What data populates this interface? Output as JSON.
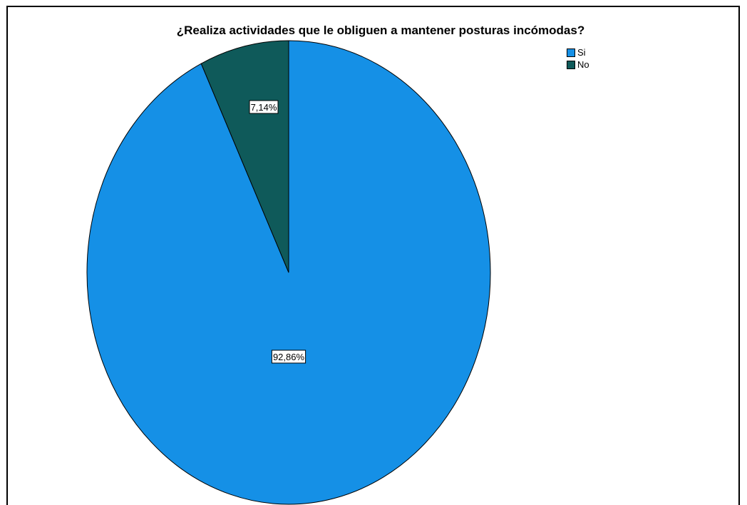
{
  "chart_data": {
    "type": "pie",
    "title": "¿Realiza actividades que le obliguen a mantener posturas incómodas?",
    "slices": [
      {
        "label": "Si",
        "value": 92.86,
        "value_label": "92,86%",
        "color": "#1590e6"
      },
      {
        "label": "No",
        "value": 7.14,
        "value_label": "7,14%",
        "color": "#0f5a5a"
      }
    ],
    "legend_position": "top-right"
  }
}
